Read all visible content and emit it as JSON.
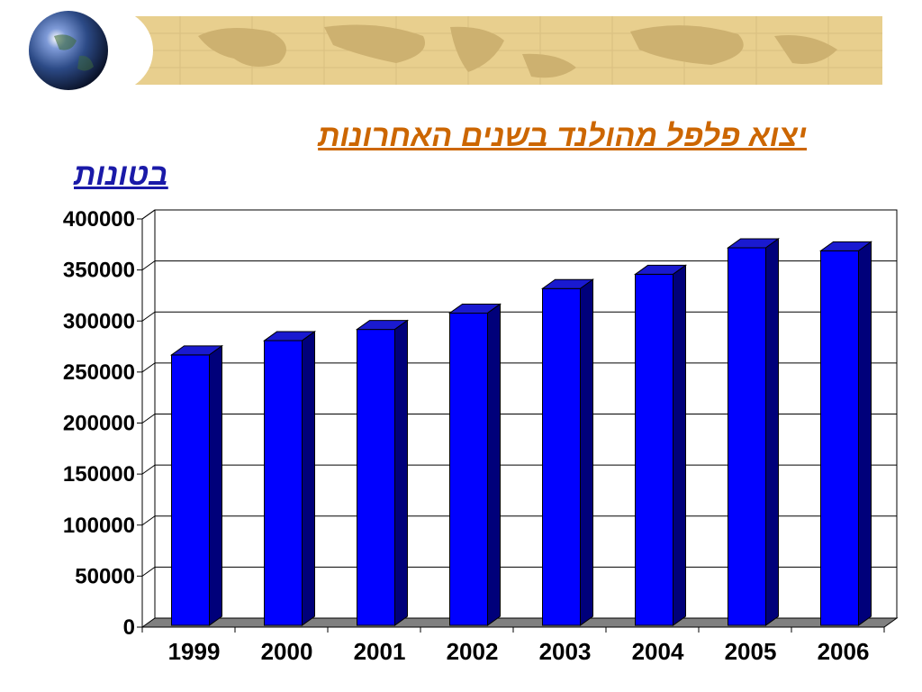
{
  "slide": {
    "title": "יצוא פלפל מהולנד בשנים האחרונות",
    "unit_label": "בטונות"
  },
  "colors": {
    "bar_front": "#0000ff",
    "bar_top": "#1a1ad0",
    "bar_side": "#00007a",
    "floor": "#808080",
    "title": "#cc6600",
    "unit": "#1a1aa8"
  },
  "chart_data": {
    "type": "bar",
    "categories": [
      "1999",
      "2000",
      "2001",
      "2002",
      "2003",
      "2004",
      "2005",
      "2006"
    ],
    "series": [
      {
        "values": [
          265000,
          279000,
          290000,
          306000,
          330000,
          344000,
          370000,
          367000
        ]
      }
    ],
    "ylim": [
      0,
      400000
    ],
    "yticks": [
      0,
      50000,
      100000,
      150000,
      200000,
      250000,
      300000,
      350000,
      400000
    ],
    "ytick_labels": [
      "0",
      "50000",
      "100000",
      "150000",
      "200000",
      "250000",
      "300000",
      "350000",
      "400000"
    ],
    "grid": true,
    "legend": "none",
    "style": "3d"
  }
}
